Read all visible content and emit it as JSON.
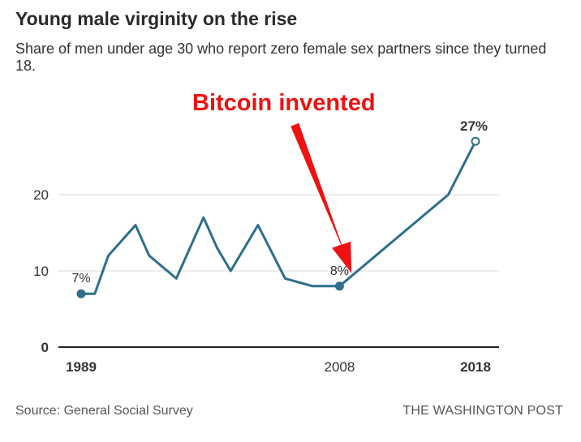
{
  "header": {
    "title": "Young male virginity on the rise",
    "subtitle": "Share of men under age 30 who report zero female sex partners since they turned 18."
  },
  "footer": {
    "source": "Source: General Social Survey",
    "credit": "THE WASHINGTON POST"
  },
  "colors": {
    "line": "#2f6e8d",
    "grid": "#d9d9d9",
    "axis": "#222222",
    "arrow": "#ee1111",
    "annotation_text": "#ee1111"
  },
  "chart_data": {
    "type": "line",
    "title": "Young male virginity on the rise",
    "subtitle": "Share of men under age 30 who report zero female sex partners since they turned 18.",
    "xlabel": "",
    "ylabel": "",
    "xlim": [
      1989,
      2018
    ],
    "ylim": [
      0,
      27
    ],
    "y_ticks": [
      0,
      10,
      20
    ],
    "x_tick_labels": [
      "1989",
      "2008",
      "2018"
    ],
    "grid": true,
    "series": [
      {
        "name": "",
        "x": [
          1989,
          1990,
          1991,
          1993,
          1994,
          1996,
          1998,
          1999,
          2000,
          2002,
          2004,
          2006,
          2008,
          2016,
          2018
        ],
        "values": [
          7,
          7,
          12,
          16,
          12,
          9,
          17,
          13,
          10,
          16,
          9,
          8,
          8,
          20,
          27
        ]
      }
    ],
    "data_labels": [
      {
        "x": 1989,
        "y": 7,
        "text": "7%",
        "bold": false
      },
      {
        "x": 2008,
        "y": 8,
        "text": "8%",
        "bold": false
      },
      {
        "x": 2018,
        "y": 27,
        "text": "27%",
        "bold": true
      }
    ],
    "annotation": {
      "text": "Bitcoin invented",
      "points_to_x": 2009
    }
  }
}
